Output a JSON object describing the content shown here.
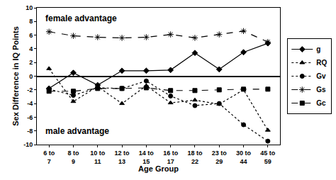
{
  "chart_data": {
    "type": "line",
    "x_label": "Age Group",
    "y_label": "Sex Difference in IQ Points",
    "annotations": [
      "female advantage",
      "male advantage"
    ],
    "categories": [
      "6 to 7",
      "8 to 9",
      "10 to 11",
      "12 to 13",
      "14 to 15",
      "16 to 17",
      "18 to 22",
      "23 to 29",
      "30 to 44",
      "45 to 59"
    ],
    "series": [
      {
        "name": "g",
        "color": "#000000",
        "marker": "diamond",
        "line_style": "solid",
        "values": [
          -1.8,
          0.5,
          -1.3,
          0.8,
          0.8,
          0.9,
          3.4,
          1.0,
          3.5,
          4.8
        ]
      },
      {
        "name": "RQ",
        "color": "#000000",
        "marker": "triangle",
        "line_style": "dotted",
        "values": [
          1.1,
          -3.7,
          -1.5,
          -4.0,
          -1.4,
          -3.9,
          -3.5,
          -4.1,
          -2.0,
          -7.9
        ]
      },
      {
        "name": "Gv",
        "color": "#000000",
        "marker": "circle",
        "line_style": "dotted",
        "values": [
          -1.9,
          -2.8,
          -1.7,
          -1.8,
          -0.7,
          -2.9,
          -4.3,
          -4.0,
          -7.1,
          -9.5
        ]
      },
      {
        "name": "Gs",
        "color": "#000000",
        "marker": "asterisk",
        "line_style": "dashed",
        "values": [
          6.5,
          5.9,
          5.7,
          5.6,
          5.7,
          6.1,
          5.6,
          6.1,
          6.6,
          5.0
        ]
      },
      {
        "name": "Gc",
        "color": "#000000",
        "marker": "square",
        "line_style": "dashed",
        "values": [
          -2.2,
          -2.2,
          -1.8,
          -1.8,
          -1.7,
          -2.1,
          -2.1,
          -2.0,
          -1.9,
          -1.9
        ]
      }
    ],
    "ylim": [
      -10,
      10
    ],
    "yticks": [
      -10,
      -8,
      -6,
      -4,
      -2,
      0,
      2,
      4,
      6,
      8,
      10
    ],
    "grid": false,
    "legend": "right"
  }
}
